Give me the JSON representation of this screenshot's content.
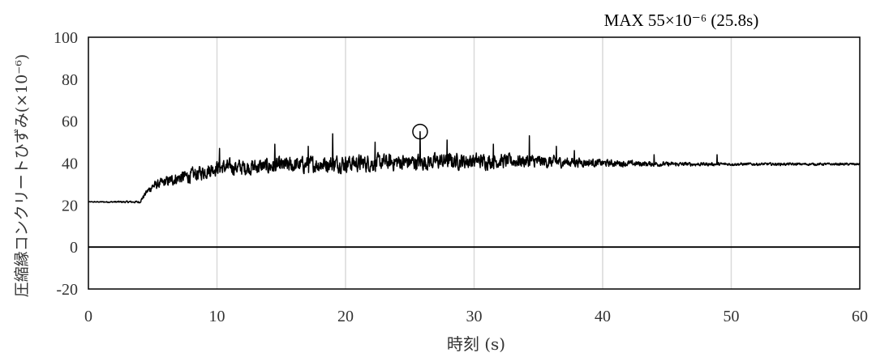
{
  "chart_data": {
    "type": "line",
    "title": "",
    "xlabel": "時刻 (s)",
    "ylabel": "圧縮縁コンクリートひずみ(×10⁻⁶)",
    "xlim": [
      0,
      60
    ],
    "ylim": [
      -20,
      100
    ],
    "x_ticks": [
      "0",
      "10",
      "20",
      "30",
      "40",
      "50",
      "60"
    ],
    "y_ticks": [
      "-20",
      "0",
      "20",
      "40",
      "60",
      "80",
      "100"
    ],
    "grid": {
      "vertical": true,
      "horizontal": false
    },
    "zero_line": true,
    "line_color": "#000000",
    "annotation": {
      "text": "MAX 55×10⁻⁶ (25.8s)",
      "x": 25.8,
      "y": 55,
      "marker": "circle"
    },
    "series": [
      {
        "values": [
          [
            0,
            21.5
          ],
          [
            1,
            21.5
          ],
          [
            2,
            21.5
          ],
          [
            3,
            21.5
          ],
          [
            4,
            21.5
          ],
          [
            4.5,
            26
          ],
          [
            5,
            29
          ],
          [
            6,
            31
          ],
          [
            7,
            33
          ],
          [
            8,
            34
          ],
          [
            9,
            36
          ],
          [
            10,
            38
          ],
          [
            12,
            38
          ],
          [
            14,
            38.5
          ],
          [
            16,
            39
          ],
          [
            18,
            39.5
          ],
          [
            20,
            40
          ],
          [
            22,
            40
          ],
          [
            24,
            40.5
          ],
          [
            25.8,
            55
          ],
          [
            26,
            40.5
          ],
          [
            28,
            41
          ],
          [
            30,
            41
          ],
          [
            32,
            41
          ],
          [
            34,
            41
          ],
          [
            36,
            40.5
          ],
          [
            38,
            40.5
          ],
          [
            40,
            40
          ],
          [
            45,
            39.5
          ],
          [
            50,
            39.5
          ],
          [
            55,
            39.5
          ],
          [
            60,
            39.5
          ]
        ],
        "noise_amplitude": [
          [
            0,
            0.3
          ],
          [
            4,
            0.8
          ],
          [
            5,
            3
          ],
          [
            8,
            5
          ],
          [
            12,
            5.5
          ],
          [
            20,
            6
          ],
          [
            30,
            5.5
          ],
          [
            35,
            4.5
          ],
          [
            40,
            2.5
          ],
          [
            45,
            1.5
          ],
          [
            50,
            1
          ],
          [
            60,
            0.8
          ]
        ],
        "spikes": [
          [
            19.0,
            54
          ],
          [
            25.8,
            55
          ],
          [
            34.3,
            53
          ],
          [
            27.9,
            51
          ],
          [
            22.3,
            50
          ],
          [
            17.1,
            48
          ],
          [
            14.5,
            49
          ],
          [
            36.4,
            48
          ],
          [
            48.9,
            44
          ],
          [
            37.8,
            46
          ],
          [
            10.2,
            47
          ],
          [
            31.5,
            49
          ],
          [
            44.0,
            44
          ]
        ]
      }
    ]
  }
}
